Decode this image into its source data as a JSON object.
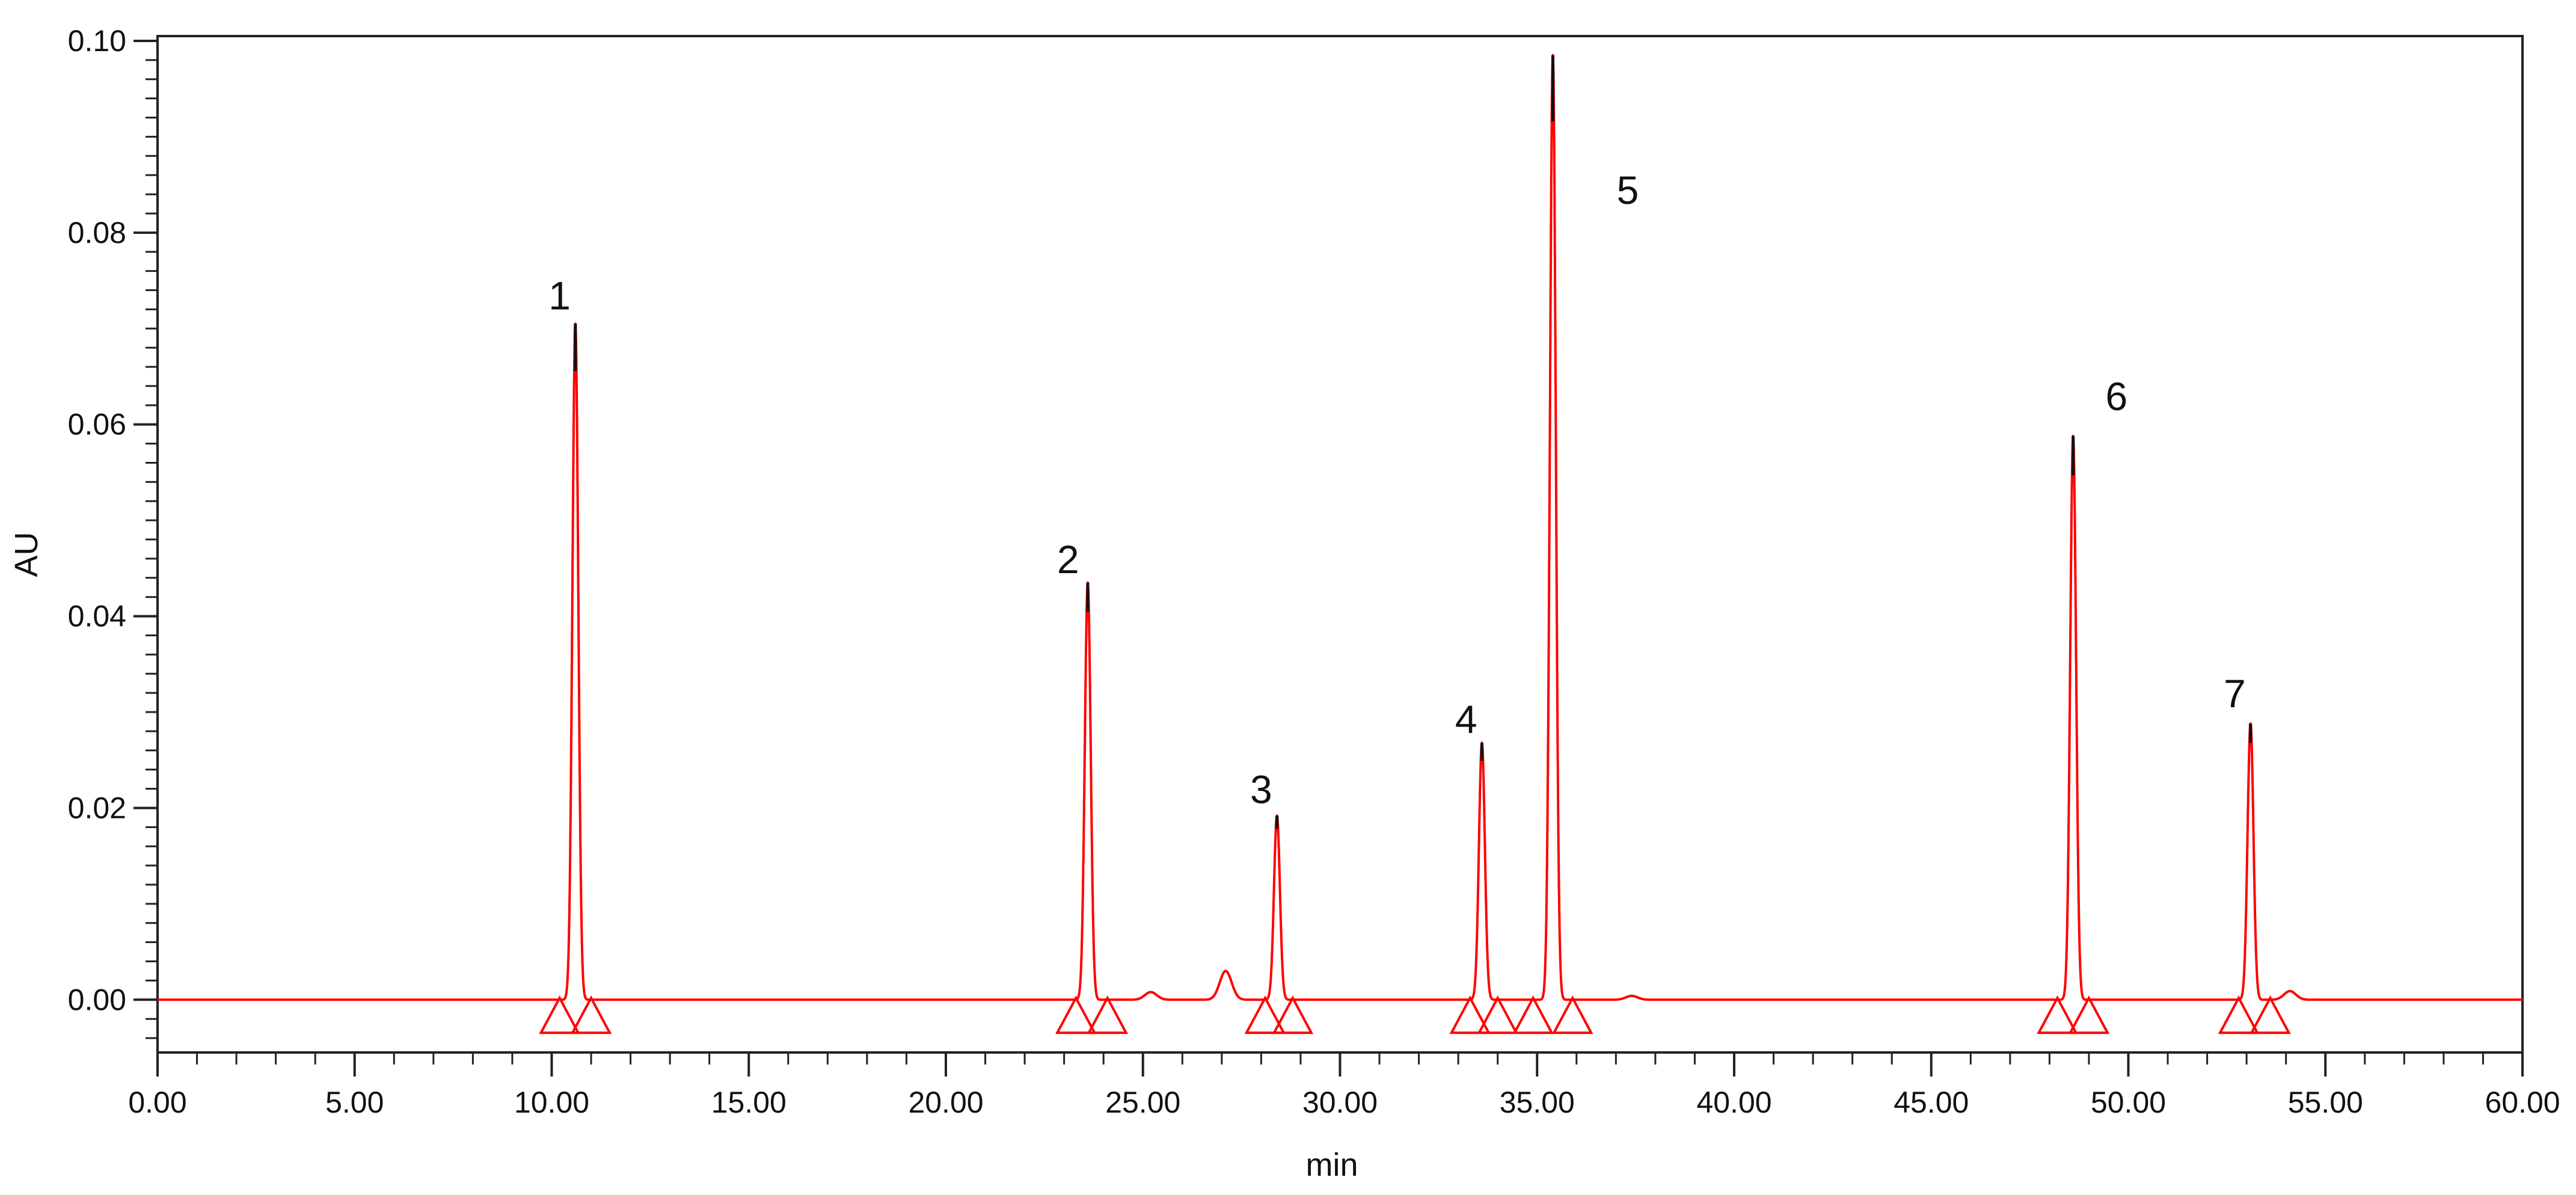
{
  "chart_data": {
    "type": "line",
    "title": "",
    "xlabel": "min",
    "ylabel": "AU",
    "xlim": [
      0,
      60
    ],
    "ylim": [
      -0.0055,
      0.1005
    ],
    "grid": false,
    "line_color": "#ff0000",
    "peak_tip_color": "#111111",
    "x_ticks": [
      "0.00",
      "5.00",
      "10.00",
      "15.00",
      "20.00",
      "25.00",
      "30.00",
      "35.00",
      "40.00",
      "45.00",
      "50.00",
      "55.00",
      "60.00"
    ],
    "x_tick_values": [
      0,
      5,
      10,
      15,
      20,
      25,
      30,
      35,
      40,
      45,
      50,
      55,
      60
    ],
    "y_ticks": [
      "0.00",
      "0.02",
      "0.04",
      "0.06",
      "0.08",
      "0.10"
    ],
    "y_tick_values": [
      0,
      0.02,
      0.04,
      0.06,
      0.08,
      0.1
    ],
    "peaks": [
      {
        "label": "1",
        "x": 10.6,
        "y": 0.0705,
        "label_x": 10.2,
        "label_y": 0.072
      },
      {
        "label": "2",
        "x": 23.6,
        "y": 0.0435,
        "label_x": 23.1,
        "label_y": 0.0445
      },
      {
        "label": "3",
        "x": 28.4,
        "y": 0.0192,
        "label_x": 28.0,
        "label_y": 0.0205
      },
      {
        "label": "4",
        "x": 33.6,
        "y": 0.0268,
        "label_x": 33.2,
        "label_y": 0.0278
      },
      {
        "label": "5",
        "x": 35.4,
        "y": 0.0985,
        "label_x": 37.3,
        "label_y": 0.083
      },
      {
        "label": "6",
        "x": 48.6,
        "y": 0.0588,
        "label_x": 49.7,
        "label_y": 0.0615
      },
      {
        "label": "7",
        "x": 53.1,
        "y": 0.0288,
        "label_x": 52.7,
        "label_y": 0.0305
      }
    ],
    "minor_peaks": [
      {
        "x": 25.2,
        "y": 0.0008
      },
      {
        "x": 27.1,
        "y": 0.003
      },
      {
        "x": 37.4,
        "y": 0.0004
      },
      {
        "x": 54.1,
        "y": 0.0009
      }
    ],
    "integration_markers": [
      10.2,
      11.0,
      23.3,
      24.1,
      28.1,
      28.8,
      33.3,
      34.0,
      34.9,
      35.9,
      48.2,
      49.0,
      52.8,
      53.6
    ]
  }
}
